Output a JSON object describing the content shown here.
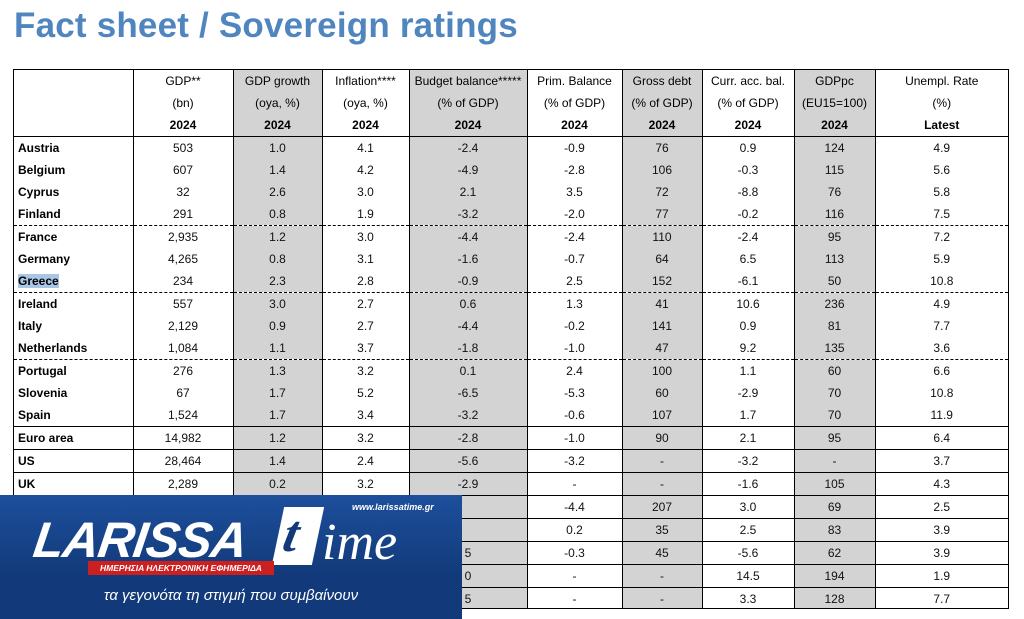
{
  "title": "Fact sheet / Sovereign ratings",
  "columns": [
    {
      "h1": "",
      "h2": "",
      "h3": ""
    },
    {
      "h1": "GDP**",
      "h2": "(bn)",
      "h3": "2024"
    },
    {
      "h1": "GDP growth",
      "h2": "(oya, %)",
      "h3": "2024"
    },
    {
      "h1": "Inflation****",
      "h2": "(oya, %)",
      "h3": "2024"
    },
    {
      "h1": "Budget balance*****",
      "h2": "(% of GDP)",
      "h3": "2024"
    },
    {
      "h1": "Prim. Balance",
      "h2": "(% of GDP)",
      "h3": "2024"
    },
    {
      "h1": "Gross debt",
      "h2": "(% of GDP)",
      "h3": "2024"
    },
    {
      "h1": "Curr. acc. bal.",
      "h2": "(% of GDP)",
      "h3": "2024"
    },
    {
      "h1": "GDPpc",
      "h2": "(EU15=100)",
      "h3": "2024"
    },
    {
      "h1": "Unempl. Rate",
      "h2": "(%)",
      "h3": "Latest"
    }
  ],
  "rows": [
    {
      "name": "Austria",
      "sep": "none",
      "v": [
        "503",
        "1.0",
        "4.1",
        "-2.4",
        "-0.9",
        "76",
        "0.9",
        "124",
        "4.9"
      ]
    },
    {
      "name": "Belgium",
      "sep": "none",
      "v": [
        "607",
        "1.4",
        "4.2",
        "-4.9",
        "-2.8",
        "106",
        "-0.3",
        "115",
        "5.6"
      ]
    },
    {
      "name": "Cyprus",
      "sep": "none",
      "v": [
        "32",
        "2.6",
        "3.0",
        "2.1",
        "3.5",
        "72",
        "-8.8",
        "76",
        "5.8"
      ]
    },
    {
      "name": "Finland",
      "sep": "dash",
      "v": [
        "291",
        "0.8",
        "1.9",
        "-3.2",
        "-2.0",
        "77",
        "-0.2",
        "116",
        "7.5"
      ]
    },
    {
      "name": "France",
      "sep": "none",
      "v": [
        "2,935",
        "1.2",
        "3.0",
        "-4.4",
        "-2.4",
        "110",
        "-2.4",
        "95",
        "7.2"
      ]
    },
    {
      "name": "Germany",
      "sep": "none",
      "v": [
        "4,265",
        "0.8",
        "3.1",
        "-1.6",
        "-0.7",
        "64",
        "6.5",
        "113",
        "5.9"
      ]
    },
    {
      "name": "Greece",
      "sep": "dash",
      "highlight": true,
      "v": [
        "234",
        "2.3",
        "2.8",
        "-0.9",
        "2.5",
        "152",
        "-6.1",
        "50",
        "10.8"
      ]
    },
    {
      "name": "Ireland",
      "sep": "none",
      "v": [
        "557",
        "3.0",
        "2.7",
        "0.6",
        "1.3",
        "41",
        "10.6",
        "236",
        "4.9"
      ]
    },
    {
      "name": "Italy",
      "sep": "none",
      "v": [
        "2,129",
        "0.9",
        "2.7",
        "-4.4",
        "-0.2",
        "141",
        "0.9",
        "81",
        "7.7"
      ]
    },
    {
      "name": "Netherlands",
      "sep": "dash",
      "v": [
        "1,084",
        "1.1",
        "3.7",
        "-1.8",
        "-1.0",
        "47",
        "9.2",
        "135",
        "3.6"
      ]
    },
    {
      "name": "Portugal",
      "sep": "none",
      "v": [
        "276",
        "1.3",
        "3.2",
        "0.1",
        "2.4",
        "100",
        "1.1",
        "60",
        "6.6"
      ]
    },
    {
      "name": "Slovenia",
      "sep": "none",
      "v": [
        "67",
        "1.7",
        "5.2",
        "-6.5",
        "-5.3",
        "60",
        "-2.9",
        "70",
        "10.8"
      ]
    },
    {
      "name": "Spain",
      "sep": "solid",
      "v": [
        "1,524",
        "1.7",
        "3.4",
        "-3.2",
        "-0.6",
        "107",
        "1.7",
        "70",
        "11.9"
      ]
    },
    {
      "name": "Euro area",
      "sep": "solid",
      "v": [
        "14,982",
        "1.2",
        "3.2",
        "-2.8",
        "-1.0",
        "90",
        "2.1",
        "95",
        "6.4"
      ]
    },
    {
      "name": "US",
      "sep": "solid",
      "v": [
        "28,464",
        "1.4",
        "2.4",
        "-5.6",
        "-3.2",
        "-",
        "-3.2",
        "-",
        "3.7"
      ]
    },
    {
      "name": "UK",
      "sep": "solid",
      "v": [
        "2,289",
        "0.2",
        "3.2",
        "-2.9",
        "-",
        "-",
        "-1.6",
        "105",
        "4.3"
      ]
    },
    {
      "name": "",
      "sep": "solid",
      "v": [
        "",
        "",
        "",
        "",
        "-4.4",
        "207",
        "3.0",
        "69",
        "2.5"
      ]
    },
    {
      "name": "",
      "sep": "solid",
      "v": [
        "",
        "",
        "",
        "",
        "0.2",
        "35",
        "2.5",
        "83",
        "3.9"
      ]
    },
    {
      "name": "",
      "sep": "solid",
      "v": [
        "",
        "",
        "",
        "5",
        "-0.3",
        "45",
        "-5.6",
        "62",
        "3.9"
      ]
    },
    {
      "name": "",
      "sep": "solid",
      "v": [
        "",
        "",
        "",
        "0",
        "-",
        "-",
        "14.5",
        "194",
        "1.9"
      ]
    },
    {
      "name": "",
      "sep": "solid",
      "v": [
        "",
        "",
        "",
        "5",
        "-",
        "-",
        "3.3",
        "128",
        "7.7"
      ]
    }
  ],
  "logo": {
    "word_a": "LARISSA",
    "word_t": "t",
    "word_b": "ime",
    "url": "www.larissatime.gr",
    "subtitle": "ΗΜΕΡΗΣΙΑ ΗΛΕΚΤΡΟΝΙΚΗ ΕΦΗΜΕΡΙΔΑ",
    "slogan": "τα γεγονότα τη στιγμή που συμβαίνουν"
  }
}
